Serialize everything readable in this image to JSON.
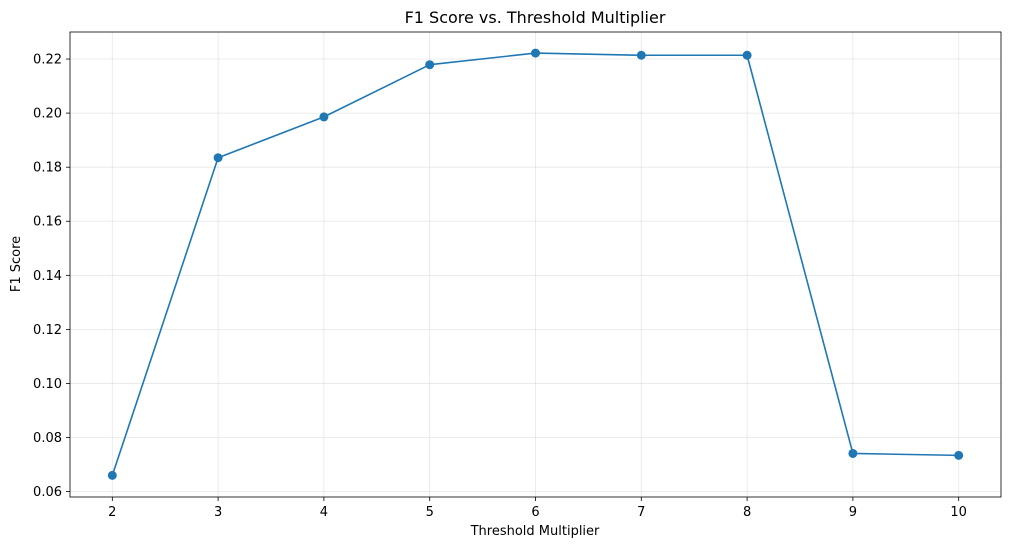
{
  "chart_data": {
    "type": "line",
    "title": "F1 Score vs. Threshold Multiplier",
    "xlabel": "Threshold Multiplier",
    "ylabel": "F1 Score",
    "xlim": [
      1.6,
      10.4
    ],
    "ylim": [
      0.058,
      0.23
    ],
    "xticks": [
      2,
      3,
      4,
      5,
      6,
      7,
      8,
      9,
      10
    ],
    "xtick_labels": [
      "2",
      "3",
      "4",
      "5",
      "6",
      "7",
      "8",
      "9",
      "10"
    ],
    "yticks": [
      0.06,
      0.08,
      0.1,
      0.12,
      0.14,
      0.16,
      0.18,
      0.2,
      0.22
    ],
    "ytick_labels": [
      "0.06",
      "0.08",
      "0.10",
      "0.12",
      "0.14",
      "0.16",
      "0.18",
      "0.20",
      "0.22"
    ],
    "grid": true,
    "marker": "circle",
    "series": [
      {
        "x": [
          2,
          3,
          4,
          5,
          6,
          7,
          8,
          9,
          10
        ],
        "values": [
          0.066,
          0.1835,
          0.1986,
          0.2179,
          0.2222,
          0.2214,
          0.2214,
          0.0741,
          0.0734
        ],
        "color": "#1f77b4"
      }
    ]
  }
}
